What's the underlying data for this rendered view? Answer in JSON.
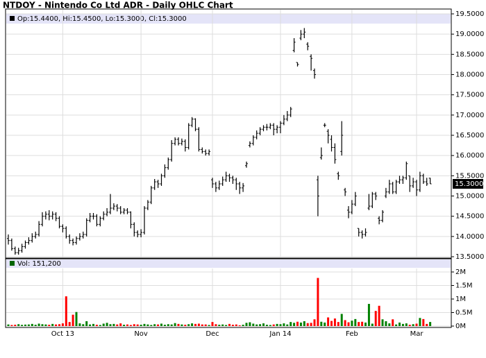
{
  "chart_data": {
    "type": "ohlc",
    "title": "NTDOY - Nintendo Co Ltd ADR - Daily OHLC Chart",
    "info": "Op:15.4400, Hi:15.4500, Lo:15.3000, Cl:15.3000",
    "last_price_label": "15.3000",
    "bar_color": "#000000",
    "grid": true,
    "categories": [
      null,
      null,
      null,
      null,
      null,
      null,
      null,
      null,
      null,
      null,
      null,
      null,
      null,
      null,
      null,
      null,
      "Oct 13",
      null,
      null,
      null,
      null,
      null,
      null,
      null,
      null,
      null,
      null,
      null,
      null,
      null,
      null,
      null,
      null,
      null,
      null,
      null,
      null,
      null,
      null,
      "Nov",
      null,
      null,
      null,
      null,
      null,
      null,
      null,
      null,
      null,
      null,
      null,
      null,
      null,
      null,
      null,
      null,
      null,
      null,
      null,
      null,
      "Dec",
      null,
      null,
      null,
      null,
      null,
      null,
      null,
      null,
      null,
      null,
      null,
      null,
      null,
      null,
      null,
      null,
      null,
      null,
      null,
      "Jan 14",
      null,
      null,
      null,
      null,
      null,
      null,
      null,
      null,
      null,
      null,
      null,
      null,
      null,
      null,
      null,
      null,
      null,
      null,
      null,
      null,
      "Feb",
      null,
      null,
      null,
      null,
      null,
      null,
      null,
      null,
      null,
      null,
      null,
      null,
      null,
      null,
      null,
      null,
      null,
      null,
      "Mar",
      null,
      null,
      null,
      null
    ],
    "open": [
      13.95,
      13.9,
      13.7,
      13.6,
      13.65,
      13.75,
      13.85,
      13.9,
      14.0,
      14.05,
      14.3,
      14.5,
      14.55,
      14.5,
      14.55,
      14.45,
      14.25,
      14.2,
      14.0,
      13.9,
      13.85,
      13.95,
      14.0,
      14.05,
      14.4,
      14.5,
      14.5,
      14.3,
      14.45,
      14.55,
      14.6,
      14.7,
      14.75,
      14.7,
      14.6,
      14.65,
      14.6,
      14.3,
      14.1,
      14.05,
      14.1,
      14.7,
      14.85,
      15.2,
      15.35,
      15.3,
      15.5,
      15.7,
      15.9,
      16.3,
      16.4,
      16.3,
      16.35,
      16.2,
      16.75,
      16.9,
      16.65,
      16.15,
      16.1,
      16.05,
      15.4,
      15.3,
      15.2,
      15.3,
      15.4,
      15.5,
      15.45,
      15.4,
      15.3,
      15.2,
      15.75,
      16.25,
      16.3,
      16.45,
      16.55,
      16.65,
      16.7,
      16.7,
      16.75,
      16.65,
      16.7,
      16.8,
      16.9,
      17.0,
      18.6,
      18.3,
      18.9,
      19.0,
      18.75,
      18.45,
      18.1,
      15.4,
      15.95,
      16.75,
      16.6,
      16.4,
      16.2,
      15.55,
      16.1,
      15.15,
      14.65,
      14.6,
      14.8,
      14.2,
      14.1,
      14.05,
      14.7,
      14.75,
      15.05,
      14.45,
      14.4,
      15.0,
      15.1,
      15.3,
      15.1,
      15.35,
      15.4,
      15.45,
      15.5,
      15.25,
      15.35,
      15.15,
      15.5,
      15.35,
      15.44
    ],
    "high": [
      14.05,
      13.95,
      13.75,
      13.72,
      13.82,
      13.9,
      13.98,
      14.08,
      14.12,
      14.38,
      14.6,
      14.62,
      14.65,
      14.62,
      14.6,
      14.5,
      14.3,
      14.25,
      14.05,
      13.95,
      14.0,
      14.08,
      14.12,
      14.45,
      14.58,
      14.58,
      14.55,
      14.5,
      14.62,
      14.7,
      15.05,
      14.82,
      14.8,
      14.75,
      14.7,
      14.7,
      14.62,
      14.35,
      14.15,
      14.18,
      14.75,
      14.9,
      15.25,
      15.42,
      15.4,
      15.55,
      15.78,
      15.95,
      16.38,
      16.45,
      16.45,
      16.42,
      16.4,
      16.8,
      16.95,
      16.92,
      16.7,
      16.2,
      16.15,
      16.15,
      15.45,
      15.35,
      15.38,
      15.48,
      15.6,
      15.55,
      15.5,
      15.45,
      15.35,
      15.32,
      15.85,
      16.35,
      16.5,
      16.62,
      16.7,
      16.75,
      16.78,
      16.8,
      16.8,
      16.75,
      16.85,
      17.0,
      17.1,
      17.2,
      18.9,
      18.3,
      19.1,
      19.15,
      18.8,
      18.5,
      18.15,
      15.5,
      16.2,
      16.8,
      16.65,
      16.5,
      16.3,
      15.6,
      16.85,
      15.2,
      14.75,
      14.9,
      15.1,
      14.2,
      14.15,
      14.2,
      15.05,
      15.1,
      15.1,
      14.5,
      14.65,
      15.2,
      15.4,
      15.35,
      15.4,
      15.5,
      15.5,
      15.85,
      15.5,
      15.45,
      15.4,
      15.6,
      15.55,
      15.45,
      15.45
    ],
    "low": [
      13.8,
      13.65,
      13.55,
      13.55,
      13.6,
      13.7,
      13.8,
      13.85,
      13.95,
      14.0,
      14.25,
      14.42,
      14.4,
      14.42,
      14.38,
      14.2,
      14.1,
      13.95,
      13.82,
      13.78,
      13.8,
      13.9,
      13.95,
      14.0,
      14.35,
      14.42,
      14.25,
      14.25,
      14.4,
      14.5,
      14.55,
      14.65,
      14.62,
      14.55,
      14.55,
      14.55,
      14.2,
      14.0,
      13.98,
      13.98,
      14.05,
      14.65,
      14.8,
      15.15,
      15.2,
      15.25,
      15.45,
      15.65,
      15.85,
      16.25,
      16.25,
      16.25,
      16.1,
      16.15,
      16.7,
      16.6,
      16.1,
      16.05,
      16.0,
      16.0,
      15.2,
      15.1,
      15.15,
      15.25,
      15.35,
      15.35,
      15.3,
      15.15,
      15.05,
      15.1,
      15.7,
      16.2,
      16.25,
      16.4,
      16.5,
      16.6,
      16.62,
      16.65,
      16.5,
      16.55,
      16.55,
      16.75,
      16.85,
      16.95,
      18.55,
      18.2,
      18.85,
      18.9,
      18.6,
      18.1,
      17.9,
      14.5,
      15.9,
      16.7,
      16.3,
      16.1,
      15.8,
      15.4,
      16.0,
      15.0,
      14.45,
      14.55,
      14.75,
      14.0,
      13.95,
      14.0,
      14.65,
      14.7,
      14.9,
      14.3,
      14.35,
      14.95,
      15.05,
      15.05,
      15.05,
      15.3,
      15.3,
      15.4,
      15.1,
      15.2,
      15.0,
      15.1,
      15.3,
      15.25,
      15.3
    ],
    "close": [
      13.9,
      13.7,
      13.6,
      13.65,
      13.75,
      13.85,
      13.9,
      14.0,
      14.05,
      14.3,
      14.5,
      14.55,
      14.5,
      14.55,
      14.45,
      14.25,
      14.2,
      14.0,
      13.9,
      13.85,
      13.95,
      14.0,
      14.05,
      14.4,
      14.5,
      14.5,
      14.3,
      14.45,
      14.55,
      14.6,
      14.7,
      14.75,
      14.7,
      14.6,
      14.65,
      14.6,
      14.3,
      14.1,
      14.05,
      14.1,
      14.7,
      14.85,
      15.2,
      15.35,
      15.3,
      15.5,
      15.7,
      15.9,
      16.3,
      16.4,
      16.3,
      16.35,
      16.2,
      16.75,
      16.9,
      16.65,
      16.15,
      16.1,
      16.05,
      16.1,
      15.3,
      15.2,
      15.3,
      15.4,
      15.5,
      15.45,
      15.4,
      15.3,
      15.2,
      15.25,
      15.8,
      16.3,
      16.45,
      16.55,
      16.65,
      16.7,
      16.7,
      16.75,
      16.65,
      16.7,
      16.8,
      16.9,
      17.0,
      17.15,
      18.8,
      18.25,
      19.0,
      19.05,
      18.7,
      18.4,
      18.0,
      15.0,
      16.0,
      16.75,
      16.5,
      16.2,
      15.9,
      15.5,
      16.5,
      15.1,
      14.6,
      14.8,
      15.0,
      14.1,
      14.05,
      14.1,
      14.75,
      15.05,
      15.0,
      14.4,
      14.6,
      15.1,
      15.3,
      15.1,
      15.35,
      15.4,
      15.45,
      15.8,
      15.25,
      15.35,
      15.15,
      15.5,
      15.35,
      15.3,
      15.3
    ],
    "ylim": [
      13.5,
      19.5
    ],
    "yticks": [
      {
        "value": 13.5,
        "label": "13.5000"
      },
      {
        "value": 14.0,
        "label": "14.0000"
      },
      {
        "value": 14.5,
        "label": "14.5000"
      },
      {
        "value": 15.0,
        "label": "15.0000"
      },
      {
        "value": 15.5,
        "label": "15.5000"
      },
      {
        "value": 16.0,
        "label": "16.0000"
      },
      {
        "value": 16.5,
        "label": "16.5000"
      },
      {
        "value": 17.0,
        "label": "17.0000"
      },
      {
        "value": 17.5,
        "label": "17.5000"
      },
      {
        "value": 18.0,
        "label": "18.0000"
      },
      {
        "value": 18.5,
        "label": "18.5000"
      },
      {
        "value": 19.0,
        "label": "19.0000"
      },
      {
        "value": 19.5,
        "label": "19.5000"
      }
    ],
    "volume": {
      "label": "Vol: 151,200",
      "up_color": "#008000",
      "down_color": "#ff0000",
      "values": [
        60000,
        40000,
        50000,
        70000,
        45000,
        55000,
        60000,
        80000,
        50000,
        90000,
        70000,
        60000,
        50000,
        80000,
        60000,
        70000,
        100000,
        1100000,
        150000,
        420000,
        520000,
        100000,
        70000,
        180000,
        60000,
        80000,
        50000,
        40000,
        90000,
        120000,
        70000,
        80000,
        60000,
        100000,
        50000,
        60000,
        40000,
        70000,
        60000,
        50000,
        80000,
        60000,
        40000,
        70000,
        60000,
        90000,
        50000,
        70000,
        60000,
        110000,
        80000,
        60000,
        50000,
        70000,
        100000,
        80000,
        90000,
        60000,
        60000,
        40000,
        150000,
        70000,
        50000,
        60000,
        40000,
        80000,
        50000,
        60000,
        30000,
        50000,
        120000,
        140000,
        90000,
        60000,
        70000,
        100000,
        50000,
        40000,
        60000,
        80000,
        70000,
        100000,
        60000,
        150000,
        120000,
        160000,
        130000,
        180000,
        110000,
        120000,
        250000,
        1780000,
        160000,
        130000,
        320000,
        190000,
        280000,
        150000,
        450000,
        220000,
        140000,
        200000,
        260000,
        150000,
        160000,
        130000,
        820000,
        90000,
        560000,
        750000,
        250000,
        180000,
        100000,
        250000,
        60000,
        130000,
        80000,
        100000,
        50000,
        70000,
        90000,
        300000,
        260000,
        80000,
        151200
      ],
      "ylim": [
        0,
        2000000
      ],
      "yticks": [
        {
          "value": 0,
          "label": "0M"
        },
        {
          "value": 500000,
          "label": "0.5M"
        },
        {
          "value": 1000000,
          "label": "1M"
        },
        {
          "value": 1500000,
          "label": "1.5M"
        },
        {
          "value": 2000000,
          "label": "2M"
        }
      ]
    }
  }
}
